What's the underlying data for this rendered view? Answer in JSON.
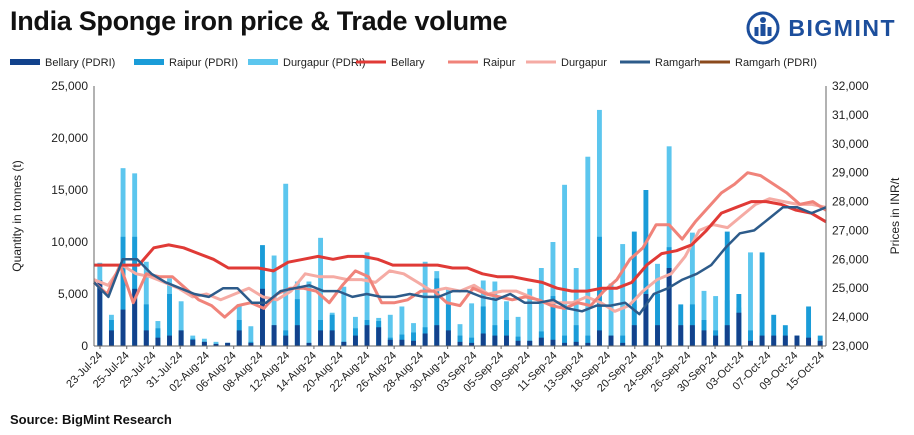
{
  "header": {
    "title": "India Sponge iron price & Trade volume",
    "brand": "BIGMINT"
  },
  "footer": {
    "source": "Source: BigMint Research"
  },
  "colors": {
    "bellary_pdri": "#12428c",
    "raipur_pdri": "#1a9cd8",
    "durgapur_pdri": "#5cc6ee",
    "bellary": "#e03a36",
    "raipur": "#f0837a",
    "durgapur": "#f5aba4",
    "ramgarh": "#2d5b8a",
    "ramgarh_pdri": "#8b4a1c",
    "brand": "#1c4e9c"
  },
  "chart_data": {
    "type": "bar",
    "ylabel": "Quantity in tonnes  (t)",
    "y2label": "Prices in INR/t",
    "ylim": [
      0,
      25000
    ],
    "y_ticks": [
      "0",
      "5,000",
      "10,000",
      "15,000",
      "20,000",
      "25,000"
    ],
    "y_tick_values": [
      0,
      5000,
      10000,
      15000,
      20000,
      25000
    ],
    "y2lim": [
      23000,
      32000
    ],
    "y2_ticks": [
      "23,000",
      "24,000",
      "25,000",
      "26,000",
      "27,000",
      "28,000",
      "29,000",
      "30,000",
      "31,000",
      "32,000"
    ],
    "y2_tick_values": [
      23000,
      24000,
      25000,
      26000,
      27000,
      28000,
      29000,
      30000,
      31000,
      32000
    ],
    "grid": false,
    "legend_position": "top",
    "x_tick_labels": [
      "23-Jul-24",
      "25-Jul-24",
      "29-Jul-24",
      "31-Jul-24",
      "02-Aug-24",
      "06-Aug-24",
      "08-Aug-24",
      "12-Aug-24",
      "14-Aug-24",
      "20-Aug-24",
      "22-Aug-24",
      "26-Aug-24",
      "28-Aug-24",
      "30-Aug-24",
      "03-Sep-24",
      "05-Sep-24",
      "09-Sep-24",
      "11-Sep-24",
      "13-Sep-24",
      "18-Sep-24",
      "20-Sep-24",
      "24-Sep-24",
      "26-Sep-24",
      "30-Sep-24",
      "03-Oct-24",
      "07-Oct-24",
      "09-Oct-24",
      "15-Oct-24"
    ],
    "bar_series": [
      {
        "name": "Bellary (PDRI)",
        "values": [
          6300,
          1500,
          3500,
          5500,
          1500,
          800,
          1000,
          1500,
          600,
          400,
          200,
          300,
          1500,
          300,
          5500,
          2000,
          1000,
          2000,
          300,
          1500,
          1500,
          400,
          1000,
          2000,
          1800,
          600,
          600,
          500,
          1200,
          2000,
          1500,
          400,
          300,
          1200,
          1000,
          1000,
          500,
          500,
          800,
          600,
          300,
          400,
          300,
          1500,
          1000,
          300,
          2000,
          5000,
          2000,
          7500,
          2000,
          2000,
          1500,
          1000,
          2000,
          3200,
          500,
          1000,
          1000,
          1000,
          1000,
          800,
          500
        ]
      },
      {
        "name": "Raipur (PDRI)",
        "values": [
          6300,
          2500,
          10500,
          10500,
          4000,
          1700,
          5000,
          1500,
          700,
          400,
          200,
          300,
          2500,
          400,
          9700,
          2000,
          1500,
          4500,
          300,
          2500,
          3000,
          400,
          1700,
          2500,
          2400,
          800,
          1100,
          1300,
          1800,
          6500,
          4000,
          1000,
          800,
          3800,
          2000,
          2500,
          900,
          500,
          1400,
          4800,
          1000,
          2000,
          1000,
          10500,
          1000,
          1000,
          11000,
          15000,
          5000,
          9500,
          4000,
          4000,
          2500,
          1500,
          11000,
          5000,
          1500,
          9000,
          3000,
          2000,
          1000,
          3800,
          1000
        ]
      },
      {
        "name": "Durgapur (PDRI)",
        "values": [
          8000,
          3000,
          17100,
          16600,
          8100,
          2400,
          6500,
          4300,
          1000,
          700,
          400,
          300,
          4000,
          1900,
          3200,
          8700,
          15600,
          6200,
          6200,
          10400,
          3200,
          5700,
          2800,
          9000,
          2700,
          3000,
          3800,
          2200,
          8100,
          7200,
          5500,
          2100,
          4100,
          6300,
          6200,
          4300,
          2800,
          5500,
          7500,
          10000,
          15500,
          7500,
          18200,
          22700,
          6000,
          9800,
          4000,
          6200,
          7900,
          19200,
          600,
          10900,
          5300,
          4800,
          4400,
          3700,
          9000,
          3200
        ]
      }
    ],
    "line_series": [
      {
        "name": "Bellary",
        "values": [
          25800,
          25800,
          25800,
          25800,
          26400,
          26500,
          26400,
          26200,
          26000,
          25700,
          25700,
          25700,
          25600,
          25900,
          26000,
          26100,
          26000,
          26100,
          26100,
          26000,
          25800,
          25800,
          25800,
          25800,
          25700,
          25700,
          25500,
          25400,
          25400,
          25300,
          25200,
          25000,
          24900,
          24900,
          25000,
          25000,
          25200,
          25800,
          26200,
          26300,
          26500,
          27000,
          27600,
          27800,
          28000,
          28000,
          27900,
          27700,
          27600,
          27300
        ]
      },
      {
        "name": "Raipur",
        "values": [
          25200,
          24800,
          25800,
          24500,
          25500,
          25400,
          25400,
          25000,
          24600,
          24400,
          24000,
          24400,
          24500,
          24300,
          24800,
          25000,
          25000,
          24900,
          24500,
          25100,
          25600,
          25400,
          24500,
          24500,
          24600,
          24900,
          24900,
          24500,
          24400,
          25000,
          24800,
          24700,
          24600,
          24700,
          24600,
          24400,
          24300,
          24500,
          24400,
          24900,
          25300,
          26000,
          26400,
          27200,
          27200,
          26700,
          27300,
          27800,
          28300,
          28600,
          29000,
          28900,
          28600,
          28300,
          27900,
          28000,
          27700
        ]
      },
      {
        "name": "Durgapur",
        "values": [
          25300,
          25100,
          25800,
          25500,
          25400,
          25200,
          25000,
          24700,
          24800,
          24600,
          24800,
          25000,
          24700,
          24600,
          24900,
          25500,
          25400,
          25400,
          25300,
          25300,
          25200,
          25600,
          25500,
          25200,
          24900,
          25000,
          24900,
          25100,
          24800,
          24900,
          24900,
          24700,
          24500,
          24500,
          24500,
          24700,
          24500,
          24200,
          24400,
          24900,
          25300,
          25500,
          26100,
          27000,
          27200,
          27100,
          27500,
          27900,
          28100,
          28000,
          27900,
          27900,
          27800
        ]
      },
      {
        "name": "Ramgarh",
        "values": [
          25200,
          24700,
          26000,
          26000,
          25500,
          25200,
          25000,
          24800,
          24700,
          25000,
          25000,
          24500,
          24500,
          24900,
          25000,
          25100,
          24900,
          24900,
          24700,
          24800,
          24700,
          24700,
          24800,
          24700,
          24700,
          24900,
          24900,
          24700,
          24600,
          24800,
          24500,
          24500,
          24600,
          24300,
          24200,
          24400,
          24400,
          24500,
          24100,
          24800,
          25000,
          25300,
          25500,
          25800,
          26400,
          26900,
          27000,
          27400,
          27800,
          27800,
          27600,
          27800
        ]
      },
      {
        "name": "Ramgarh (PDRI)",
        "values": []
      }
    ]
  }
}
